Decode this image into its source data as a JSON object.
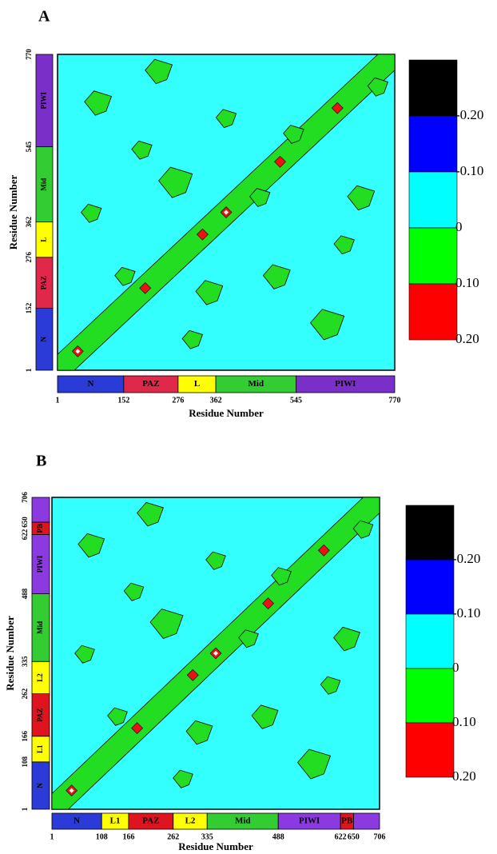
{
  "panels": [
    {
      "label": "A",
      "x_axis_title": "Residue Number",
      "y_axis_title": "Residue Number",
      "ticks": [
        1,
        152,
        276,
        362,
        545,
        770
      ],
      "domains": [
        {
          "name": "N",
          "color": "#2b3bd8"
        },
        {
          "name": "PAZ",
          "color": "#e0284a"
        },
        {
          "name": "L",
          "color": "#ffff00"
        },
        {
          "name": "Mid",
          "color": "#33cc33"
        },
        {
          "name": "PIWI",
          "color": "#7a2fc8"
        }
      ],
      "colorbar": {
        "colors": [
          "#000000",
          "#0000ff",
          "#00ffff",
          "#00ff00",
          "#ff0000"
        ],
        "labels": [
          "-0.20",
          "-0.10",
          "0",
          "0.10",
          "0.20"
        ]
      }
    },
    {
      "label": "B",
      "x_axis_title": "Residue Number",
      "y_axis_title": "Residue Number",
      "ticks": [
        1,
        108,
        166,
        262,
        335,
        488,
        622,
        650,
        706
      ],
      "domains": [
        {
          "name": "N",
          "color": "#2b3bd8"
        },
        {
          "name": "L1",
          "color": "#ffff00"
        },
        {
          "name": "PAZ",
          "color": "#e0141e"
        },
        {
          "name": "L2",
          "color": "#ffff00"
        },
        {
          "name": "Mid",
          "color": "#33cc33"
        },
        {
          "name": "PIWI",
          "color": "#8a3ae0"
        },
        {
          "name": "PB",
          "color": "#e0141e"
        },
        {
          "name": null,
          "color": "#8a3ae0"
        }
      ],
      "colorbar": {
        "colors": [
          "#000000",
          "#0000ff",
          "#00ffff",
          "#00ff00",
          "#ff0000"
        ],
        "labels": [
          "-0.20",
          "-0.10",
          "0",
          "0.10",
          "0.20"
        ]
      }
    }
  ]
}
